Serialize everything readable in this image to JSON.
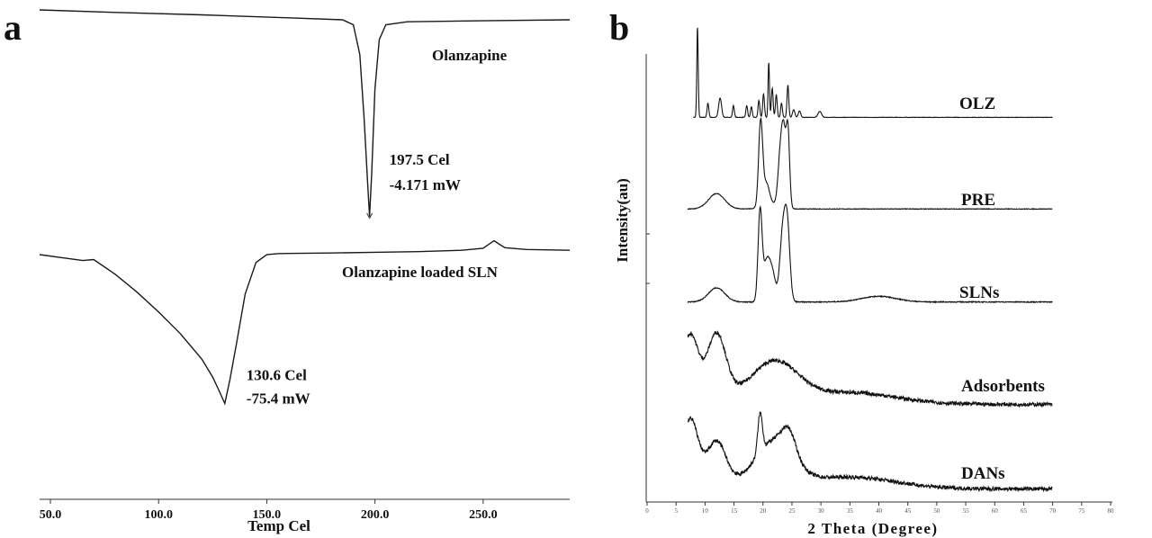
{
  "chart_data": [
    {
      "panel": "a",
      "type": "line",
      "xlabel": "Temp Cel",
      "xlim": [
        45,
        290
      ],
      "x_ticks": [
        50.0,
        100.0,
        150.0,
        200.0,
        250.0
      ],
      "x_tick_labels": [
        "50.0",
        "100.0",
        "150.0",
        "200.0",
        "250.0"
      ],
      "series": [
        {
          "name": "Olanzapine",
          "x": [
            45,
            80,
            120,
            160,
            185,
            190,
            193,
            195,
            196.5,
            197.5,
            198.5,
            200,
            202,
            205,
            215,
            250,
            290
          ],
          "y": [
            0,
            -0.05,
            -0.1,
            -0.16,
            -0.2,
            -0.3,
            -0.9,
            -2.2,
            -3.4,
            -4.171,
            -3.3,
            -1.6,
            -0.6,
            -0.3,
            -0.24,
            -0.22,
            -0.2
          ],
          "annotation": {
            "x": 197.5,
            "line1": "197.5 Cel",
            "line2": "-4.171 mW"
          }
        },
        {
          "name": "Olanzapine loaded SLN",
          "x": [
            45,
            55,
            65,
            70,
            80,
            90,
            100,
            110,
            120,
            125,
            128,
            130.6,
            133,
            136,
            140,
            145,
            150,
            155,
            160,
            180,
            200,
            220,
            240,
            250,
            255,
            260,
            270,
            290
          ],
          "y": [
            0,
            -1.5,
            -3,
            -2.5,
            -10,
            -19,
            -29,
            -40,
            -53,
            -62,
            -69,
            -75.4,
            -63,
            -45,
            -20,
            -4,
            0,
            0.5,
            0.6,
            0.8,
            1.2,
            1.5,
            2.2,
            3.2,
            7,
            3.5,
            2.6,
            2.2
          ],
          "annotation": {
            "x": 130.6,
            "line1": "130.6 Cel",
            "line2": "-75.4 mW"
          }
        }
      ]
    },
    {
      "panel": "b",
      "type": "line",
      "xlabel": "2 Theta (Degree)",
      "ylabel": "Intensity(au)",
      "xlim": [
        0,
        80
      ],
      "x_ticks": [
        0,
        5,
        10,
        15,
        20,
        25,
        30,
        35,
        40,
        45,
        50,
        55,
        60,
        65,
        70,
        75,
        80
      ],
      "x_tick_labels": [
        "0",
        "5",
        "10",
        "15",
        "20",
        "25",
        "30",
        "35",
        "40",
        "45",
        "50",
        "55",
        "60",
        "65",
        "70",
        "75",
        "80"
      ],
      "series": [
        {
          "name": "OLZ",
          "x_range": [
            8,
            70
          ],
          "baseline": 0.08,
          "decay": 0.0,
          "noise": 0.06,
          "peaks": [
            [
              8.7,
              14,
              0.12
            ],
            [
              10.5,
              2.2,
              0.15
            ],
            [
              12.6,
              3,
              0.25
            ],
            [
              14.9,
              1.8,
              0.15
            ],
            [
              17.2,
              1.8,
              0.15
            ],
            [
              18.0,
              1.6,
              0.15
            ],
            [
              19.3,
              2.6,
              0.15
            ],
            [
              20.1,
              3.6,
              0.15
            ],
            [
              21.0,
              8.5,
              0.12
            ],
            [
              21.6,
              4.5,
              0.15
            ],
            [
              22.3,
              3.5,
              0.15
            ],
            [
              23.2,
              2.2,
              0.15
            ],
            [
              24.3,
              5,
              0.15
            ],
            [
              25.3,
              1.2,
              0.2
            ],
            [
              26.3,
              1.0,
              0.2
            ],
            [
              29.8,
              0.9,
              0.3
            ]
          ]
        },
        {
          "name": "PRE",
          "x_range": [
            7,
            70
          ],
          "baseline": 0.6,
          "decay": 0.0,
          "noise": 0.07,
          "peaks": [
            [
              12,
              1.8,
              1.4
            ],
            [
              19.6,
              10,
              0.35
            ],
            [
              20.6,
              2.5,
              0.5
            ],
            [
              23.0,
              6,
              0.4
            ],
            [
              23.6,
              7.5,
              0.35
            ],
            [
              24.3,
              9,
              0.3
            ],
            [
              21.5,
              0.6,
              1.5
            ]
          ]
        },
        {
          "name": "SLNs",
          "x_range": [
            7,
            70
          ],
          "baseline": 0.7,
          "decay": 0.0,
          "noise": 0.09,
          "peaks": [
            [
              12,
              1.5,
              1.4
            ],
            [
              19.5,
              9.5,
              0.35
            ],
            [
              20.6,
              4,
              0.55
            ],
            [
              21.6,
              3,
              0.55
            ],
            [
              23.4,
              7,
              0.5
            ],
            [
              24.2,
              7.6,
              0.45
            ],
            [
              40,
              0.6,
              3
            ]
          ]
        },
        {
          "name": "Adsorbents",
          "x_range": [
            7,
            70
          ],
          "baseline": 0.2,
          "decay": 0.05,
          "noise": 0.35,
          "peaks": [
            [
              7.5,
              5,
              1.3
            ],
            [
              12,
              5.5,
              1.6
            ],
            [
              22,
              3.4,
              4
            ],
            [
              35,
              1.0,
              8
            ]
          ]
        },
        {
          "name": "DANs",
          "x_range": [
            7,
            70
          ],
          "baseline": 0.2,
          "decay": 0.05,
          "noise": 0.35,
          "peaks": [
            [
              7.5,
              5,
              1.3
            ],
            [
              12,
              3.5,
              1.6
            ],
            [
              19.5,
              3.5,
              0.4
            ],
            [
              22,
              3.8,
              3.2
            ],
            [
              24.5,
              2,
              1.2
            ],
            [
              35,
              1.0,
              8
            ]
          ]
        }
      ]
    }
  ],
  "panels": {
    "a": {
      "letter": "a"
    },
    "b": {
      "letter": "b"
    }
  }
}
